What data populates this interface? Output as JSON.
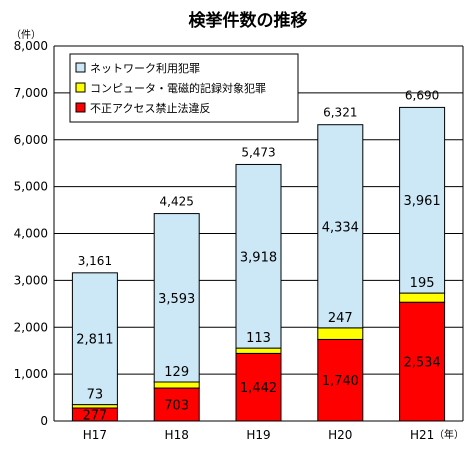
{
  "chart_data": {
    "type": "bar",
    "stacked": true,
    "title": "検挙件数の推移",
    "y_unit": "（件）",
    "x_unit": "（年）",
    "ylim": [
      0,
      8000
    ],
    "yticks": [
      "0",
      "1,000",
      "2,000",
      "3,000",
      "4,000",
      "5,000",
      "6,000",
      "7,000",
      "8,000"
    ],
    "ytick_values": [
      0,
      1000,
      2000,
      3000,
      4000,
      5000,
      6000,
      7000,
      8000
    ],
    "grid": true,
    "legend_position": "top-left",
    "categories": [
      "H17",
      "H18",
      "H19",
      "H20",
      "H21"
    ],
    "series": [
      {
        "name": "不正アクセス禁止法違反",
        "color": "#ff0000",
        "values": [
          277,
          703,
          1442,
          1740,
          2534
        ],
        "labels": [
          "277",
          "703",
          "1,442",
          "1,740",
          "2,534"
        ]
      },
      {
        "name": "コンピュータ・電磁的記録対象犯罪",
        "color": "#ffff00",
        "values": [
          73,
          129,
          113,
          247,
          195
        ],
        "labels": [
          "73",
          "129",
          "113",
          "247",
          "195"
        ]
      },
      {
        "name": "ネットワーク利用犯罪",
        "color": "#cce8f6",
        "values": [
          2811,
          3593,
          3918,
          4334,
          3961
        ],
        "labels": [
          "2,811",
          "3,593",
          "3,918",
          "4,334",
          "3,961"
        ]
      }
    ],
    "totals": [
      3161,
      4425,
      5473,
      6321,
      6690
    ],
    "total_labels": [
      "3,161",
      "4,425",
      "5,473",
      "6,321",
      "6,690"
    ],
    "legend_order": [
      2,
      1,
      0
    ]
  }
}
